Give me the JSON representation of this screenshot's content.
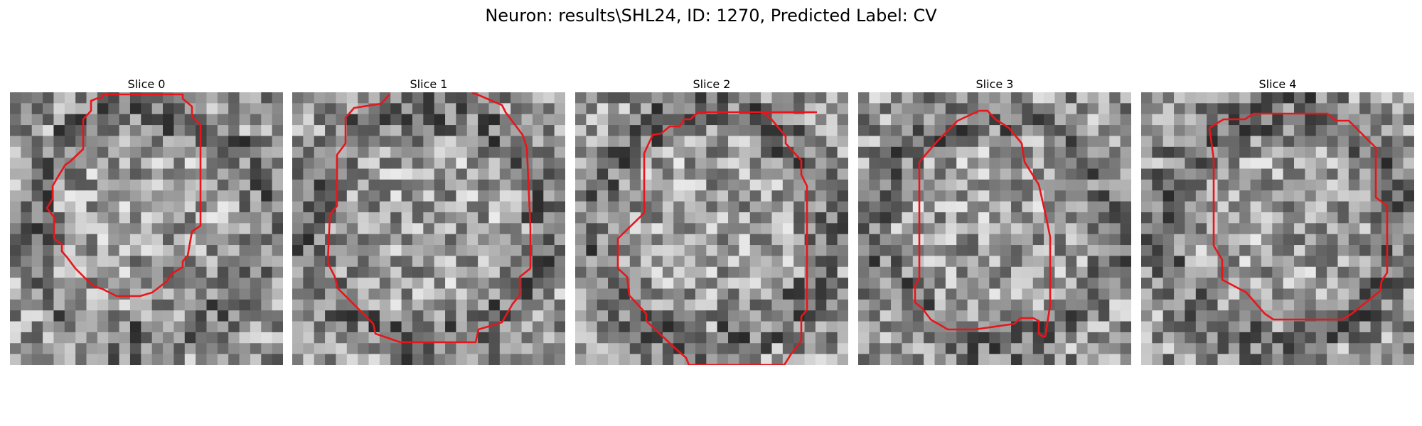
{
  "figure": {
    "title": "Neuron: results\\SHL24, ID: 1270, Predicted Label: CV",
    "contour_color": "#e8161a"
  },
  "slices": [
    {
      "title": "Slice 0",
      "seed": 11
    },
    {
      "title": "Slice 1",
      "seed": 23
    },
    {
      "title": "Slice 2",
      "seed": 37
    },
    {
      "title": "Slice 3",
      "seed": 41
    },
    {
      "title": "Slice 4",
      "seed": 59
    }
  ]
}
